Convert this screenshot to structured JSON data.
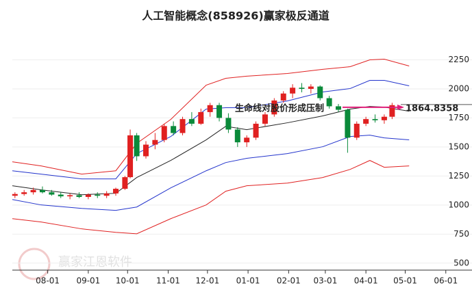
{
  "chart_data": {
    "type": "candlestick",
    "title": "人工智能概念(858926)赢家极反通道",
    "watermark": "赢家江恩软件",
    "xlim": [
      -27,
      324
    ],
    "ylim": [
      440,
      2500
    ],
    "xticks": [
      {
        "value": 0,
        "label": "08-01"
      },
      {
        "value": 31,
        "label": "09-01"
      },
      {
        "value": 61,
        "label": "10-01"
      },
      {
        "value": 92,
        "label": "11-01"
      },
      {
        "value": 122,
        "label": "12-01"
      },
      {
        "value": 153,
        "label": "01-01"
      },
      {
        "value": 184,
        "label": "02-01"
      },
      {
        "value": 212,
        "label": "03-01"
      },
      {
        "value": 243,
        "label": "04-01"
      },
      {
        "value": 273,
        "label": "05-01"
      },
      {
        "value": 304,
        "label": "06-01"
      }
    ],
    "yticks": [
      500,
      750,
      1000,
      1250,
      1500,
      1750,
      2000,
      2250
    ],
    "up_color": "#e02020",
    "down_color": "#0a8a3a",
    "candles": {
      "x": [
        -25,
        -18,
        -11,
        -4,
        3,
        10,
        17,
        24,
        31,
        38,
        45,
        52,
        59,
        63,
        68,
        75,
        82,
        89,
        96,
        103,
        110,
        117,
        124,
        131,
        138,
        145,
        152,
        159,
        166,
        173,
        180,
        187,
        194,
        201,
        208,
        215,
        222,
        229,
        236,
        243,
        250,
        257,
        263
      ],
      "open": [
        1080,
        1095,
        1110,
        1130,
        1110,
        1090,
        1075,
        1085,
        1070,
        1090,
        1080,
        1100,
        1140,
        1240,
        1600,
        1420,
        1520,
        1560,
        1680,
        1620,
        1740,
        1700,
        1800,
        1860,
        1750,
        1650,
        1540,
        1580,
        1700,
        1780,
        1900,
        1960,
        2010,
        2000,
        2020,
        1920,
        1850,
        1820,
        1580,
        1700,
        1740,
        1730,
        1760
      ],
      "high": [
        1110,
        1130,
        1150,
        1160,
        1130,
        1110,
        1100,
        1110,
        1100,
        1110,
        1120,
        1150,
        1250,
        1650,
        1620,
        1550,
        1620,
        1700,
        1720,
        1760,
        1800,
        1830,
        1880,
        1880,
        1790,
        1670,
        1600,
        1720,
        1800,
        1920,
        1980,
        2040,
        2050,
        2040,
        2030,
        1940,
        1870,
        1830,
        1720,
        1760,
        1780,
        1780,
        1880
      ],
      "low": [
        1060,
        1080,
        1090,
        1100,
        1080,
        1060,
        1050,
        1060,
        1050,
        1060,
        1060,
        1080,
        1130,
        1230,
        1380,
        1400,
        1480,
        1540,
        1600,
        1600,
        1680,
        1690,
        1760,
        1720,
        1620,
        1500,
        1500,
        1560,
        1680,
        1760,
        1880,
        1920,
        1970,
        1960,
        1900,
        1830,
        1800,
        1450,
        1560,
        1680,
        1710,
        1700,
        1740
      ],
      "close": [
        1095,
        1110,
        1130,
        1110,
        1090,
        1075,
        1085,
        1070,
        1090,
        1080,
        1100,
        1140,
        1240,
        1600,
        1420,
        1520,
        1560,
        1680,
        1620,
        1740,
        1700,
        1800,
        1860,
        1750,
        1650,
        1540,
        1580,
        1700,
        1780,
        1900,
        1960,
        2010,
        2000,
        2020,
        1920,
        1850,
        1820,
        1580,
        1700,
        1740,
        1730,
        1760,
        1860
      ]
    },
    "bands": {
      "x": [
        -27,
        -5,
        26,
        52,
        68,
        94,
        121,
        136,
        152,
        183,
        210,
        231,
        246,
        257,
        276
      ],
      "series": [
        {
          "color": "#e02020",
          "values": [
            1372,
            1337,
            1266,
            1295,
            1531,
            1737,
            2032,
            2091,
            2109,
            2132,
            2168,
            2191,
            2250,
            2256,
            2197
          ]
        },
        {
          "color": "#2233cc",
          "values": [
            1295,
            1266,
            1225,
            1225,
            1443,
            1590,
            1826,
            1838,
            1838,
            1896,
            1973,
            2003,
            2073,
            2073,
            2026
          ]
        },
        {
          "color": "#222222",
          "values": [
            1166,
            1131,
            1089,
            1101,
            1237,
            1384,
            1561,
            1678,
            1649,
            1708,
            1767,
            1826,
            1849,
            1843,
            1808
          ]
        },
        {
          "color": "#2233cc",
          "values": [
            1048,
            1001,
            971,
            954,
            983,
            1148,
            1295,
            1366,
            1402,
            1443,
            1502,
            1590,
            1602,
            1578,
            1561
          ]
        },
        {
          "color": "#e02020",
          "values": [
            883,
            854,
            795,
            765,
            753,
            883,
            1001,
            1119,
            1166,
            1189,
            1237,
            1307,
            1384,
            1325,
            1337
          ]
        }
      ]
    },
    "annotation": {
      "text": "生命线对股价形成压制",
      "value": 1864.8358,
      "value_label": "1864.8358",
      "color": "#e0207a"
    }
  }
}
